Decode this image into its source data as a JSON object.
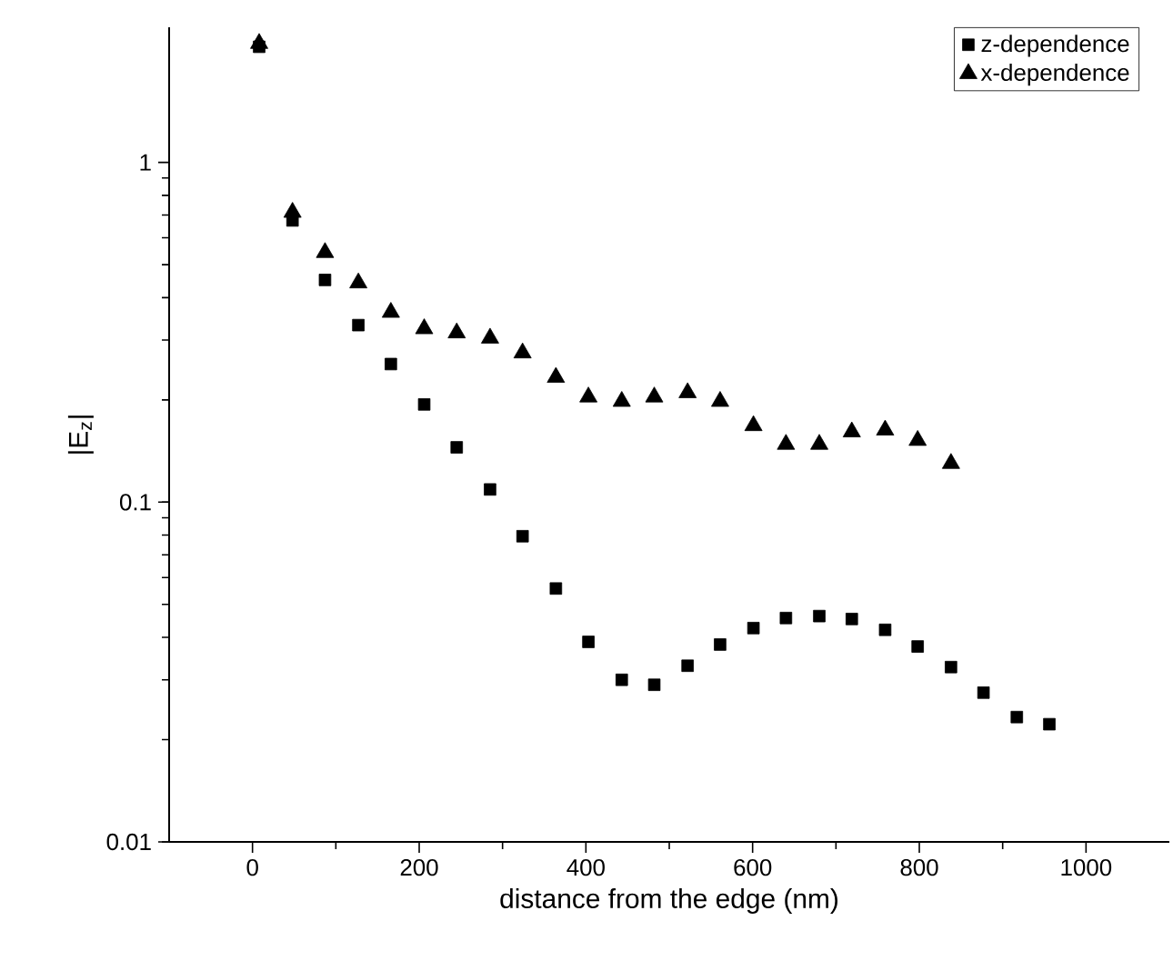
{
  "chart_data": {
    "type": "scatter",
    "xlabel": "distance from the edge (nm)",
    "ylabel": "|E$_{z}$|",
    "xlim": [
      -100,
      1100
    ],
    "xticks": [
      0,
      200,
      400,
      600,
      800,
      1000
    ],
    "ylim": [
      0.01,
      2.5
    ],
    "yticks": [
      0.01,
      0.1,
      1
    ],
    "log": "y",
    "grid": false,
    "legend": "top right",
    "series": [
      {
        "name": "z-dependence",
        "color": "#000000",
        "marker": "square",
        "x": [
          8,
          48,
          87,
          127,
          166,
          206,
          245,
          285,
          324,
          364,
          403,
          443,
          482,
          522,
          561,
          601,
          640,
          680,
          719,
          759,
          798,
          838,
          877,
          917,
          956
        ],
        "values": [
          2.19,
          0.675,
          0.451,
          0.332,
          0.255,
          0.194,
          0.145,
          0.109,
          0.0794,
          0.0557,
          0.0388,
          0.03,
          0.029,
          0.033,
          0.0381,
          0.0426,
          0.0456,
          0.0462,
          0.0453,
          0.0421,
          0.0376,
          0.0327,
          0.0275,
          0.0233,
          0.0222
        ]
      },
      {
        "name": "x-dependence",
        "color": "#000000",
        "marker": "triangle",
        "x": [
          8,
          48,
          87,
          127,
          166,
          206,
          245,
          285,
          324,
          364,
          403,
          443,
          482,
          522,
          561,
          601,
          640,
          680,
          719,
          759,
          798,
          838
        ],
        "values": [
          2.24,
          0.713,
          0.543,
          0.442,
          0.362,
          0.324,
          0.315,
          0.304,
          0.275,
          0.233,
          0.204,
          0.198,
          0.204,
          0.21,
          0.198,
          0.168,
          0.148,
          0.148,
          0.161,
          0.163,
          0.152,
          0.13
        ]
      }
    ]
  }
}
